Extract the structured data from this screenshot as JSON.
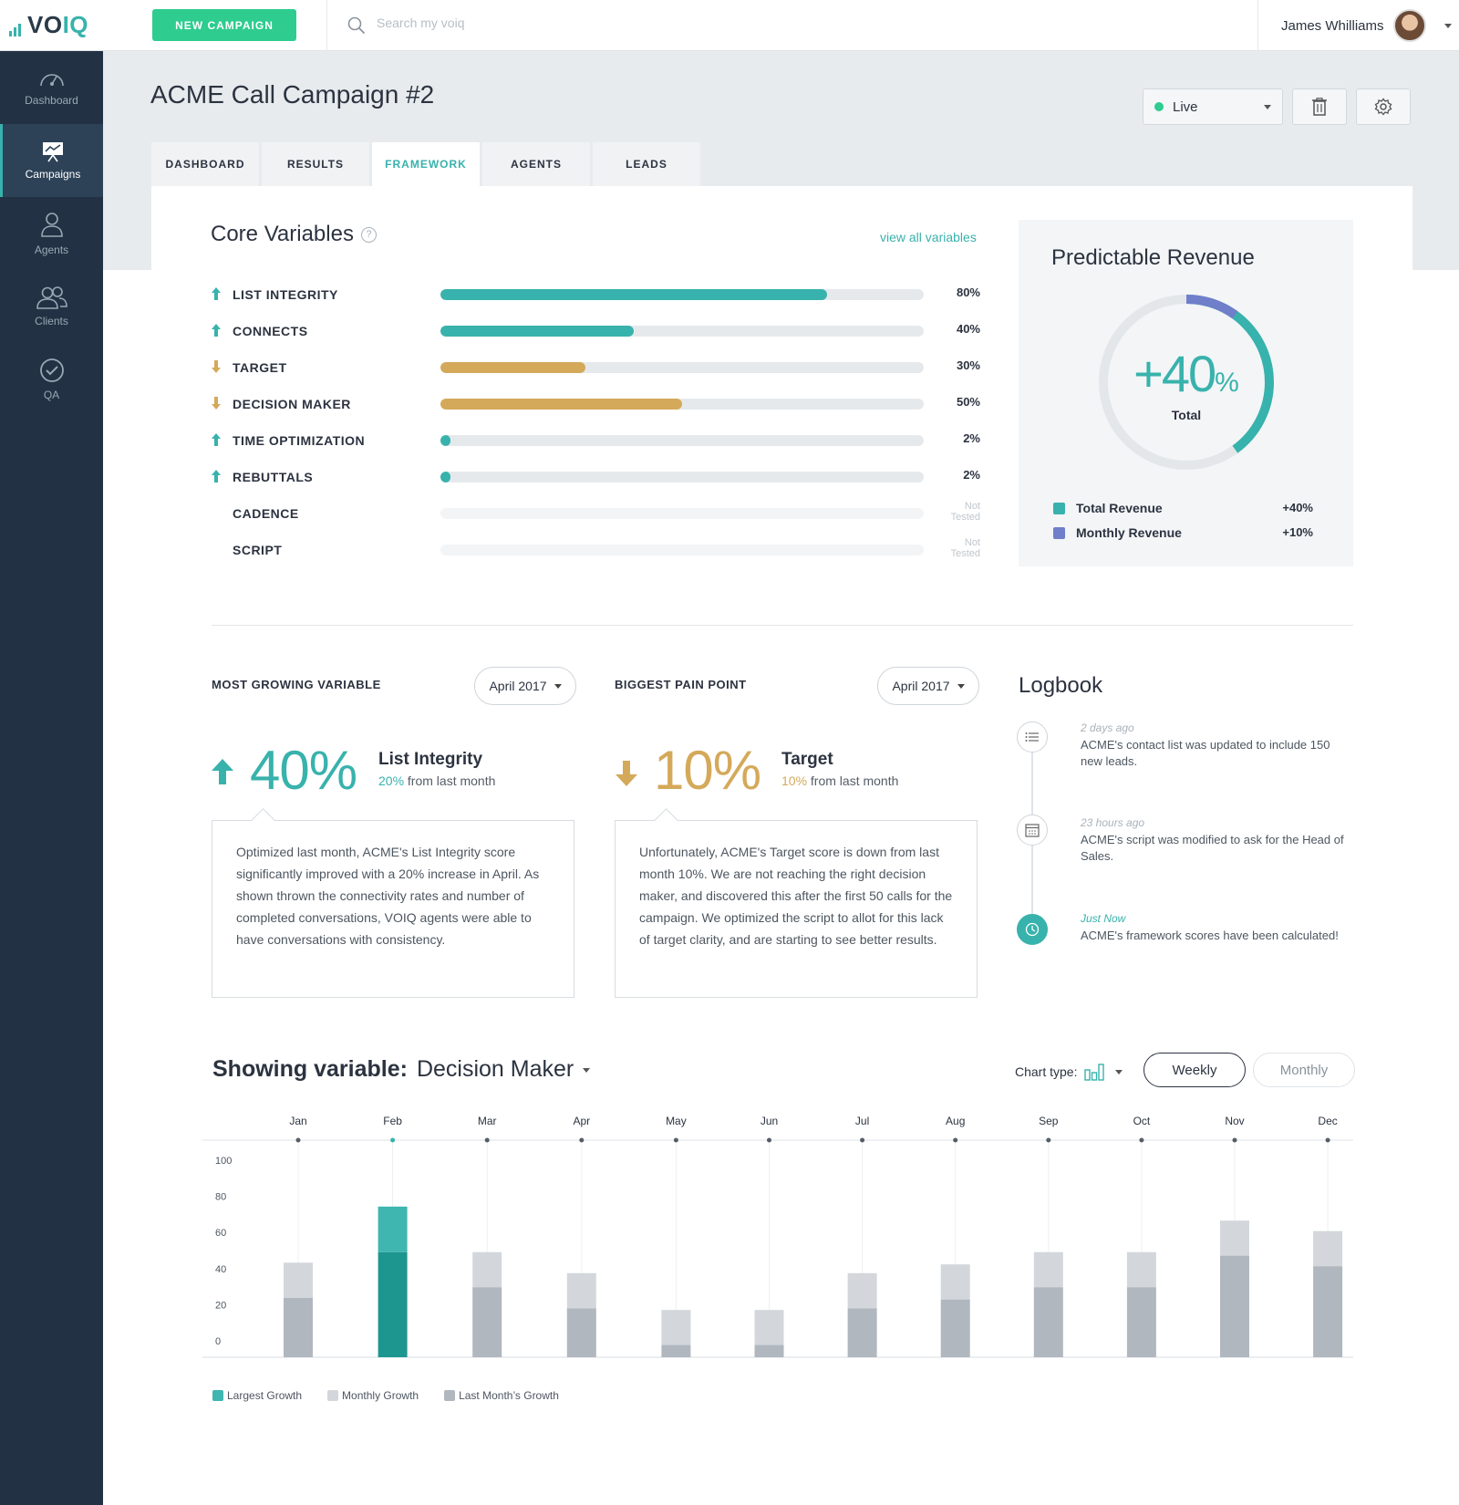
{
  "app": {
    "logo": "VOIQ",
    "new_campaign_label": "NEW CAMPAIGN",
    "search_placeholder": "Search my voiq",
    "user_name": "James Whilliams"
  },
  "sidebar": {
    "items": [
      {
        "label": "Dashboard",
        "icon": "speedometer-icon",
        "active": false
      },
      {
        "label": "Campaigns",
        "icon": "presentation-chart-icon",
        "active": true
      },
      {
        "label": "Agents",
        "icon": "agent-icon",
        "active": false
      },
      {
        "label": "Clients",
        "icon": "users-icon",
        "active": false
      },
      {
        "label": "QA",
        "icon": "check-circle-icon",
        "active": false
      }
    ]
  },
  "header": {
    "title": "ACME Call Campaign #2",
    "status": "Live",
    "status_color": "#2ecc8f",
    "tabs": [
      {
        "label": "DASHBOARD",
        "active": false
      },
      {
        "label": "RESULTS",
        "active": false
      },
      {
        "label": "FRAMEWORK",
        "active": true
      },
      {
        "label": "AGENTS",
        "active": false
      },
      {
        "label": "LEADS",
        "active": false
      }
    ]
  },
  "core_variables": {
    "title": "Core Variables",
    "help": "?",
    "view_all": "view all variables",
    "items": [
      {
        "label": "LIST INTEGRITY",
        "value": 80,
        "display": "80%",
        "trend": "up",
        "color": "#38b2ac"
      },
      {
        "label": "CONNECTS",
        "value": 40,
        "display": "40%",
        "trend": "up",
        "color": "#38b2ac"
      },
      {
        "label": "TARGET",
        "value": 30,
        "display": "30%",
        "trend": "down",
        "color": "#d4a95a"
      },
      {
        "label": "DECISION MAKER",
        "value": 50,
        "display": "50%",
        "trend": "down",
        "color": "#d4a95a"
      },
      {
        "label": "TIME OPTIMIZATION",
        "value": 2,
        "display": "2%",
        "trend": "up",
        "color": "#38b2ac"
      },
      {
        "label": "REBUTTALS",
        "value": 2,
        "display": "2%",
        "trend": "up",
        "color": "#38b2ac"
      },
      {
        "label": "CADENCE",
        "value": null,
        "display": "Not Tested",
        "trend": "none",
        "color": ""
      },
      {
        "label": "SCRIPT",
        "value": null,
        "display": "Not Tested",
        "trend": "none",
        "color": ""
      }
    ]
  },
  "predictable_revenue": {
    "title": "Predictable Revenue",
    "total_value": "+40",
    "total_unit": "%",
    "total_label": "Total",
    "donut_total_fraction": 0.4,
    "donut_monthly_fraction": 0.1,
    "legend": [
      {
        "name": "Total Revenue",
        "value": "+40%",
        "color": "#38b2ac"
      },
      {
        "name": "Monthly Revenue",
        "value": "+10%",
        "color": "#6f7fc9"
      }
    ]
  },
  "most_growing": {
    "title": "MOST GROWING VARIABLE",
    "period": "April 2017",
    "value": "40%",
    "name": "List Integrity",
    "change": "20%",
    "change_suffix": " from last month",
    "color": "#38b2ac",
    "note": "Optimized last month, ACME's List Integrity score significantly improved with a 20% increase in April. As shown thrown the connectivity rates and number of completed conversations, VOIQ agents were able to have conversations with consistency."
  },
  "pain_point": {
    "title": "BIGGEST PAIN POINT",
    "period": "April 2017",
    "value": "10%",
    "name": "Target",
    "change": "10%",
    "change_suffix": " from last month",
    "color": "#d4a95a",
    "note": "Unfortunately, ACME's Target score is down from last month 10%. We are not reaching the right decision maker, and discovered this after the first 50 calls for the campaign. We optimized the script to allot for this lack of target clarity, and are starting to see better results."
  },
  "logbook": {
    "title": "Logbook",
    "entries": [
      {
        "time": "2 days ago",
        "text": "ACME's contact list was updated to include 150 new leads.",
        "icon": "list-icon"
      },
      {
        "time": "23 hours ago",
        "text": "ACME's script was modified to ask for the Head of Sales.",
        "icon": "calendar-icon"
      },
      {
        "time": "Just Now",
        "text": "ACME's framework scores have been calculated!",
        "icon": "clock-icon"
      }
    ]
  },
  "chart_controls": {
    "showing_label": "Showing variable:",
    "variable": "Decision Maker",
    "chart_type_label": "Chart type:",
    "chart_type_icon": "bar-chart-icon",
    "weekly": "Weekly",
    "monthly": "Monthly"
  },
  "chart_data": {
    "type": "bar",
    "stacked": true,
    "categories": [
      "Jan",
      "Feb",
      "Mar",
      "Apr",
      "May",
      "Jun",
      "Jul",
      "Aug",
      "Sep",
      "Oct",
      "Nov",
      "Dec"
    ],
    "ylim": [
      0,
      100
    ],
    "yticks": [
      0,
      20,
      40,
      60,
      80,
      100
    ],
    "highlight_category": "Feb",
    "series": [
      {
        "name": "Last Month’s Growth",
        "values": [
          34,
          60,
          40,
          28,
          7,
          7,
          28,
          33,
          40,
          40,
          58,
          52
        ],
        "color": "#b0b7bf"
      },
      {
        "name": "Monthly Growth",
        "values": [
          20,
          26,
          20,
          20,
          20,
          20,
          20,
          20,
          20,
          20,
          20,
          20
        ],
        "color": "#d3d7db"
      }
    ],
    "highlight_colors": {
      "base": "#1e9690",
      "top": "#3fb6b0"
    },
    "legend": [
      {
        "name": "Largest Growth",
        "color": "#3fb6b0"
      },
      {
        "name": "Monthly Growth",
        "color": "#d3d7db"
      },
      {
        "name": "Last Month’s Growth",
        "color": "#b0b7bf"
      }
    ]
  }
}
